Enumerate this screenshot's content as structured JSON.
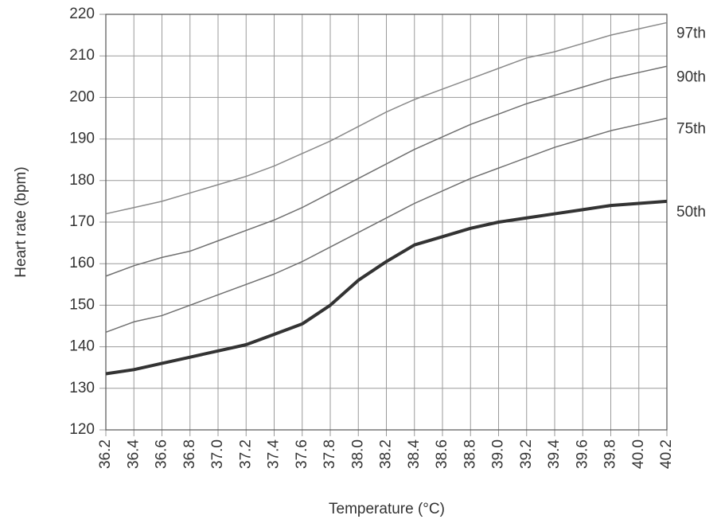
{
  "chart_data": {
    "type": "line",
    "x_label": "Temperature (°C)",
    "y_label": "Heart rate (bpm)",
    "x": [
      36.2,
      36.4,
      36.6,
      36.8,
      37.0,
      37.2,
      37.4,
      37.6,
      37.8,
      38.0,
      38.2,
      38.4,
      38.6,
      38.8,
      39.0,
      39.2,
      39.4,
      39.6,
      39.8,
      40.0,
      40.2
    ],
    "series": [
      {
        "name": "97th",
        "color": "#8a8a8a",
        "line_width": 1.5,
        "values": [
          172,
          173.5,
          175,
          177,
          179,
          181,
          183.5,
          186.5,
          189.5,
          193,
          196.5,
          199.5,
          202,
          204.5,
          207,
          209.5,
          211,
          213,
          215,
          216.5,
          218
        ]
      },
      {
        "name": "90th",
        "color": "#707070",
        "line_width": 1.5,
        "values": [
          157,
          159.5,
          161.5,
          163,
          165.5,
          168,
          170.5,
          173.5,
          177,
          180.5,
          184,
          187.5,
          190.5,
          193.5,
          196,
          198.5,
          200.5,
          202.5,
          204.5,
          206,
          207.5
        ]
      },
      {
        "name": "75th",
        "color": "#707070",
        "line_width": 1.5,
        "values": [
          143.5,
          146,
          147.5,
          150,
          152.5,
          155,
          157.5,
          160.5,
          164,
          167.5,
          171,
          174.5,
          177.5,
          180.5,
          183,
          185.5,
          188,
          190,
          192,
          193.5,
          195
        ]
      },
      {
        "name": "50th",
        "color": "#333333",
        "line_width": 4,
        "values": [
          133.5,
          134.5,
          136,
          137.5,
          139,
          140.5,
          143,
          145.5,
          150,
          156,
          160.5,
          164.5,
          166.5,
          168.5,
          170,
          171,
          172,
          173,
          174,
          174.5,
          175
        ]
      }
    ],
    "xlim": [
      36.2,
      40.2
    ],
    "xticks": [
      36.2,
      36.4,
      36.6,
      36.8,
      {
        "value": 37,
        "label": "37.0"
      },
      37.2,
      37.4,
      37.6,
      37.8,
      {
        "value": 38,
        "label": "38.0"
      },
      38.2,
      38.4,
      38.6,
      38.8,
      {
        "value": 39,
        "label": "39.0"
      },
      39.2,
      39.4,
      39.6,
      39.8,
      {
        "value": 40,
        "label": "40.0"
      },
      40.2
    ],
    "ylim": [
      120,
      220
    ],
    "yticks": [
      120,
      130,
      140,
      150,
      160,
      170,
      180,
      190,
      200,
      210,
      220
    ],
    "grid": true
  }
}
